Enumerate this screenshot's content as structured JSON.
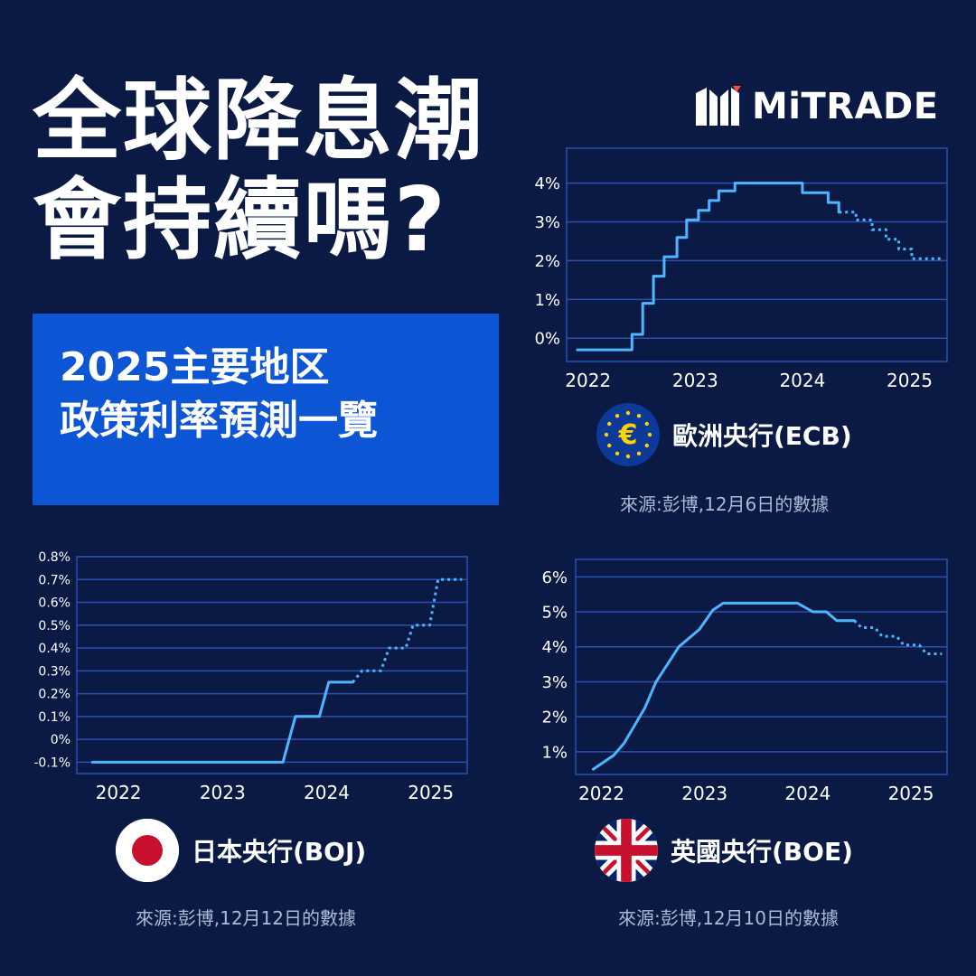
{
  "title_lines": [
    "全球降息潮",
    "會持續嗎?"
  ],
  "subtitle_lines": [
    "2025主要地区",
    "政策利率預測一覽"
  ],
  "logo": {
    "text": "MiTRADE"
  },
  "colors": {
    "background": "#0a1a45",
    "accent_box": "#0c55d4",
    "line": "#4cb6ff",
    "grid": "#2d4fb0",
    "source_text": "#aeb9d6"
  },
  "chart_data": [
    {
      "id": "ecb",
      "type": "line",
      "bank_name": "歐洲央行(ECB)",
      "flag_icon": "eu-flag-icon",
      "source": "來源:彭博,12月6日的數據",
      "x_ticks": [
        "2022",
        "2023",
        "2024",
        "2025"
      ],
      "y_ticks": [
        "0%",
        "1%",
        "2%",
        "3%",
        "4%"
      ],
      "xlim": [
        2021.8,
        2025.35
      ],
      "ylim": [
        -0.6,
        4.9
      ],
      "style": "step",
      "series_actual": [
        [
          2021.9,
          -0.3
        ],
        [
          2022.41,
          -0.3
        ],
        [
          2022.41,
          0.1
        ],
        [
          2022.51,
          0.1
        ],
        [
          2022.51,
          0.9
        ],
        [
          2022.61,
          0.9
        ],
        [
          2022.61,
          1.6
        ],
        [
          2022.71,
          1.6
        ],
        [
          2022.71,
          2.1
        ],
        [
          2022.83,
          2.1
        ],
        [
          2022.83,
          2.6
        ],
        [
          2022.92,
          2.6
        ],
        [
          2022.92,
          3.05
        ],
        [
          2023.03,
          3.05
        ],
        [
          2023.03,
          3.3
        ],
        [
          2023.13,
          3.3
        ],
        [
          2023.13,
          3.55
        ],
        [
          2023.22,
          3.55
        ],
        [
          2023.22,
          3.8
        ],
        [
          2023.37,
          3.8
        ],
        [
          2023.37,
          4.0
        ],
        [
          2024.0,
          4.0
        ],
        [
          2024.0,
          3.75
        ],
        [
          2024.24,
          3.75
        ],
        [
          2024.24,
          3.5
        ],
        [
          2024.34,
          3.5
        ],
        [
          2024.34,
          3.25
        ]
      ],
      "series_forecast": [
        [
          2024.34,
          3.25
        ],
        [
          2024.5,
          3.25
        ],
        [
          2024.5,
          3.05
        ],
        [
          2024.65,
          3.05
        ],
        [
          2024.65,
          2.8
        ],
        [
          2024.78,
          2.8
        ],
        [
          2024.78,
          2.55
        ],
        [
          2024.9,
          2.55
        ],
        [
          2024.9,
          2.3
        ],
        [
          2025.02,
          2.3
        ],
        [
          2025.02,
          2.05
        ],
        [
          2025.3,
          2.05
        ]
      ]
    },
    {
      "id": "boj",
      "type": "line",
      "bank_name": "日本央行(BOJ)",
      "flag_icon": "japan-flag-icon",
      "source": "來源:彭博,12月12日的數據",
      "x_ticks": [
        "2022",
        "2023",
        "2024",
        "2025"
      ],
      "y_ticks": [
        "-0.1%",
        "0%",
        "0.1%",
        "0.2%",
        "0.3%",
        "0.4%",
        "0.5%",
        "0.6%",
        "0.7%",
        "0.8%"
      ],
      "xlim": [
        2021.6,
        2025.35
      ],
      "ylim": [
        -0.15,
        0.8
      ],
      "style": "ramp",
      "series_actual": [
        [
          2021.75,
          -0.1
        ],
        [
          2023.58,
          -0.1
        ],
        [
          2023.7,
          0.1
        ],
        [
          2023.93,
          0.1
        ],
        [
          2024.02,
          0.25
        ],
        [
          2024.25,
          0.25
        ]
      ],
      "series_forecast": [
        [
          2024.25,
          0.25
        ],
        [
          2024.34,
          0.3
        ],
        [
          2024.52,
          0.3
        ],
        [
          2024.6,
          0.4
        ],
        [
          2024.76,
          0.4
        ],
        [
          2024.83,
          0.5
        ],
        [
          2024.99,
          0.5
        ],
        [
          2025.07,
          0.7
        ],
        [
          2025.3,
          0.7
        ]
      ]
    },
    {
      "id": "boe",
      "type": "line",
      "bank_name": "英國央行(BOE)",
      "flag_icon": "uk-flag-icon",
      "source": "來源:彭博,12月10日的數據",
      "x_ticks": [
        "2022",
        "2023",
        "2024",
        "2025"
      ],
      "y_ticks": [
        "1%",
        "2%",
        "3%",
        "4%",
        "5%",
        "6%"
      ],
      "xlim": [
        2021.75,
        2025.35
      ],
      "ylim": [
        0.35,
        6.5
      ],
      "style": "smooth",
      "series_actual": [
        [
          2021.92,
          0.5
        ],
        [
          2022.12,
          0.9
        ],
        [
          2022.22,
          1.25
        ],
        [
          2022.42,
          2.25
        ],
        [
          2022.53,
          3.0
        ],
        [
          2022.75,
          4.0
        ],
        [
          2022.95,
          4.5
        ],
        [
          2023.08,
          5.05
        ],
        [
          2023.18,
          5.25
        ],
        [
          2023.3,
          5.25
        ],
        [
          2023.9,
          5.25
        ],
        [
          2024.05,
          5.0
        ],
        [
          2024.18,
          5.0
        ],
        [
          2024.28,
          4.75
        ],
        [
          2024.45,
          4.75
        ]
      ],
      "series_forecast": [
        [
          2024.45,
          4.75
        ],
        [
          2024.52,
          4.55
        ],
        [
          2024.65,
          4.55
        ],
        [
          2024.72,
          4.3
        ],
        [
          2024.86,
          4.3
        ],
        [
          2024.93,
          4.05
        ],
        [
          2025.08,
          4.05
        ],
        [
          2025.15,
          3.8
        ],
        [
          2025.3,
          3.8
        ]
      ]
    }
  ]
}
